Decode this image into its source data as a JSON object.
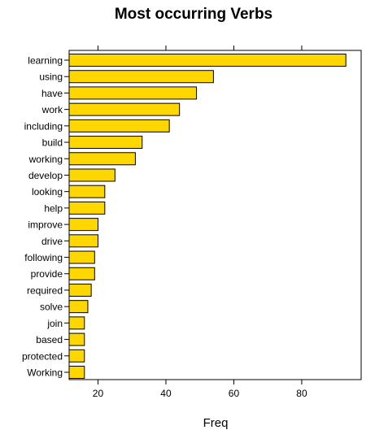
{
  "chart_data": {
    "type": "bar",
    "orientation": "horizontal",
    "title": "Most occurring Verbs",
    "xlabel": "Freq",
    "ylabel": "",
    "categories": [
      "learning",
      "using",
      "have",
      "work",
      "including",
      "build",
      "working",
      "develop",
      "looking",
      "help",
      "improve",
      "drive",
      "following",
      "provide",
      "required",
      "solve",
      "join",
      "based",
      "protected",
      "Working"
    ],
    "values": [
      93,
      54,
      49,
      44,
      41,
      33,
      31,
      25,
      22,
      22,
      20,
      20,
      19,
      19,
      18,
      17,
      16,
      16,
      16,
      16
    ],
    "xlim": [
      11.5,
      97.5
    ],
    "x_ticks": [
      20,
      40,
      60,
      80
    ],
    "x_tick_labels": [
      "20",
      "40",
      "60",
      "80"
    ],
    "grid": false,
    "legend": "none",
    "bar_color": "#FFD700",
    "bar_edge_color": "#000000"
  }
}
